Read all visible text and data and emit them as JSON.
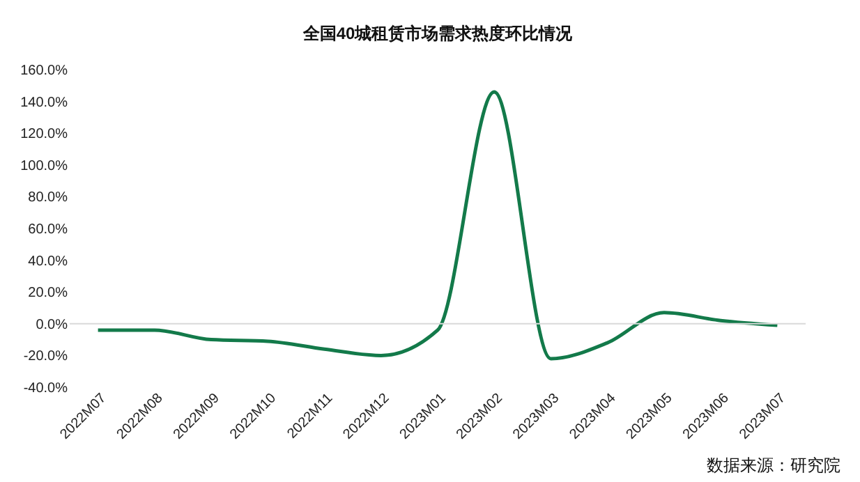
{
  "chart_data": {
    "type": "line",
    "title": "全国40城租赁市场需求热度环比情况",
    "categories": [
      "2022M07",
      "2022M08",
      "2022M09",
      "2022M10",
      "2022M11",
      "2022M12",
      "2023M01",
      "2023M02",
      "2023M03",
      "2023M04",
      "2023M05",
      "2023M06",
      "2023M07"
    ],
    "series": [
      {
        "color": "#137a4a",
        "values": [
          -4,
          -4,
          -10,
          -11,
          -16,
          -20,
          -4,
          146,
          -22,
          -12,
          7,
          2,
          -1
        ]
      }
    ],
    "ylim": [
      -40,
      160
    ],
    "yticks": [
      {
        "value": -40,
        "label": "-40.0%"
      },
      {
        "value": -20,
        "label": "-20.0%"
      },
      {
        "value": 0,
        "label": "0.0%"
      },
      {
        "value": 20,
        "label": "20.0%"
      },
      {
        "value": 40,
        "label": "40.0%"
      },
      {
        "value": 60,
        "label": "60.0%"
      },
      {
        "value": 80,
        "label": "80.0%"
      },
      {
        "value": 100,
        "label": "100.0%"
      },
      {
        "value": 120,
        "label": "120.0%"
      },
      {
        "value": 140,
        "label": "140.0%"
      },
      {
        "value": 160,
        "label": "160.0%"
      }
    ],
    "grid": false,
    "marker": "none",
    "line_style": "solid",
    "ref_lines": [
      {
        "axis": "y",
        "value": 0,
        "color": "#d9d9d9"
      }
    ],
    "annotations": [
      "数据来源：研究院"
    ]
  }
}
